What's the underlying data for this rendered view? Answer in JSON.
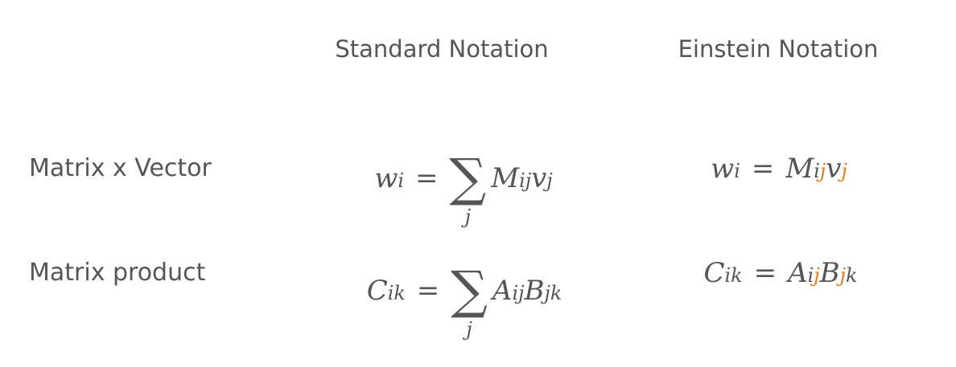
{
  "headers": {
    "standard": "Standard Notation",
    "einstein": "Einstein Notation"
  },
  "rows": [
    {
      "label": "Matrix x Vector",
      "standard": {
        "lhs": "w",
        "lhs_sub": "i",
        "eq": "=",
        "sum_index": "j",
        "t1": "M",
        "t1_sub_a": "i",
        "t1_sub_b": "j",
        "t2": "v",
        "t2_sub": "j"
      },
      "einstein": {
        "lhs": "w",
        "lhs_sub": "i",
        "eq": "=",
        "t1": "M",
        "t1_sub_a": "i",
        "t1_sub_b": "j",
        "t2": "v",
        "t2_sub": "j"
      }
    },
    {
      "label": "Matrix product",
      "standard": {
        "lhs": "C",
        "lhs_sub": "ik",
        "eq": "=",
        "sum_index": "j",
        "t1": "A",
        "t1_sub_a": "i",
        "t1_sub_b": "j",
        "t2": "B",
        "t2_sub_a": "j",
        "t2_sub_b": "k"
      },
      "einstein": {
        "lhs": "C",
        "lhs_sub": "ik",
        "eq": "=",
        "t1": "A",
        "t1_sub_a": "i",
        "t1_sub_b": "j",
        "t2": "B",
        "t2_sub_a": "j",
        "t2_sub_b": "k"
      }
    }
  ],
  "colors": {
    "text": "#555555",
    "highlight": "#e07b22",
    "background": "#ffffff"
  }
}
